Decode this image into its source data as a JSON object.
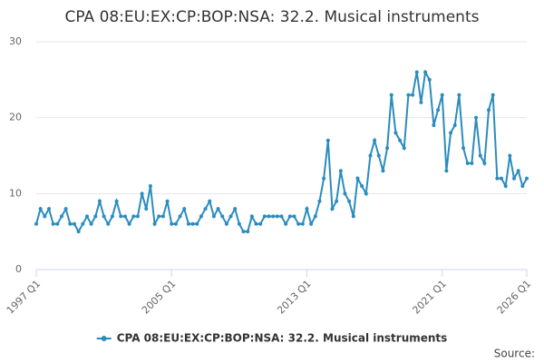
{
  "chart_data": {
    "type": "line",
    "title": "CPA 08:EU:EX:CP:BOP:NSA: 32.2. Musical instruments",
    "source": "Source:",
    "categories": [
      "1997 Q1",
      null,
      null,
      null,
      null,
      null,
      null,
      null,
      null,
      null,
      null,
      null,
      null,
      null,
      null,
      null,
      null,
      null,
      null,
      null,
      null,
      null,
      null,
      null,
      null,
      null,
      null,
      null,
      null,
      null,
      null,
      null,
      "2005 Q1",
      null,
      null,
      null,
      null,
      null,
      null,
      null,
      null,
      null,
      null,
      null,
      null,
      null,
      null,
      null,
      null,
      null,
      null,
      null,
      null,
      null,
      null,
      null,
      null,
      null,
      null,
      null,
      null,
      null,
      null,
      null,
      "2013 Q1",
      null,
      null,
      null,
      null,
      null,
      null,
      null,
      null,
      null,
      null,
      null,
      null,
      null,
      null,
      null,
      null,
      null,
      null,
      null,
      null,
      null,
      null,
      null,
      null,
      null,
      null,
      null,
      null,
      null,
      null,
      null,
      "2021 Q1",
      null,
      null,
      null,
      null,
      null,
      null,
      null,
      null,
      null,
      null,
      null,
      null,
      null,
      null,
      null,
      null,
      null,
      null,
      null,
      "2026 Q1"
    ],
    "series": [
      {
        "name": "CPA 08:EU:EX:CP:BOP:NSA: 32.2. Musical instruments",
        "color": "#2b8cbe",
        "values": [
          6,
          8,
          7,
          8,
          6,
          6,
          7,
          8,
          6,
          6,
          5,
          6,
          7,
          6,
          7,
          9,
          7,
          6,
          7,
          9,
          7,
          7,
          6,
          7,
          7,
          10,
          8,
          11,
          6,
          7,
          7,
          9,
          6,
          6,
          7,
          8,
          6,
          6,
          6,
          7,
          8,
          9,
          7,
          8,
          7,
          6,
          7,
          8,
          6,
          5,
          5,
          7,
          6,
          6,
          7,
          7,
          7,
          7,
          7,
          6,
          7,
          7,
          6,
          6,
          8,
          6,
          7,
          9,
          12,
          17,
          8,
          9,
          13,
          10,
          9,
          7,
          12,
          11,
          10,
          15,
          17,
          15,
          13,
          16,
          23,
          18,
          17,
          16,
          23,
          23,
          26,
          22,
          26,
          25,
          19,
          21,
          23,
          13,
          18,
          19,
          23,
          16,
          14,
          14,
          20,
          15,
          14,
          21,
          23,
          12,
          12,
          11,
          15,
          12,
          13,
          11,
          12
        ]
      }
    ],
    "ylim": [
      0,
      30
    ],
    "yticks": [
      0,
      10,
      20,
      30
    ],
    "grid": true
  }
}
